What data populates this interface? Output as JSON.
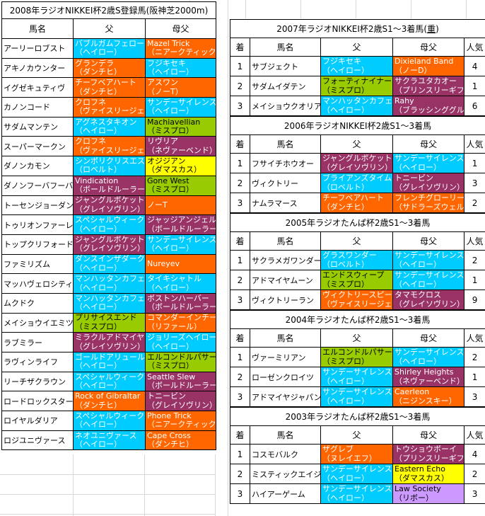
{
  "palette": {
    "cyan": {
      "bg": "#00CCFF",
      "fg": "#FFFFFF"
    },
    "orange": {
      "bg": "#FF6600",
      "fg": "#FFFFFF"
    },
    "plum": {
      "bg": "#993366",
      "fg": "#FFFFFF"
    },
    "lime": {
      "bg": "#99CC00",
      "fg": "#000000"
    },
    "yellow": {
      "bg": "#FFFF00",
      "fg": "#000000"
    },
    "lavender": {
      "bg": "#CC99FF",
      "fg": "#000000"
    }
  },
  "left_table": {
    "title": "2008年ラジオNIKKEI杯2歳S登録馬(阪神芝2000m)",
    "columns": [
      "馬名",
      "父",
      "母父"
    ],
    "rows": [
      {
        "name": "アーリーロブスト",
        "sire": {
          "t": "バブルガムフェロー",
          "s": "（ヘイロー）",
          "c": "cyan"
        },
        "dam": {
          "t": "Mazel Trick",
          "s": "（ニアークティック）",
          "c": "orange"
        }
      },
      {
        "name": "アキノカウンター",
        "sire": {
          "t": "グランデラ",
          "s": "（ダンチヒ）",
          "c": "orange"
        },
        "dam": {
          "t": "フジキセキ",
          "s": "（ヘイロー）",
          "c": "cyan"
        }
      },
      {
        "name": "イグゼキュティヴ",
        "sire": {
          "t": "チーフベアハート",
          "s": "（ダンチヒ）",
          "c": "orange"
        },
        "dam": {
          "t": "アスワン",
          "s": "（ノーT）",
          "c": "orange"
        }
      },
      {
        "name": "カノンコード",
        "sire": {
          "t": "クロフネ",
          "s": "（ヴァイスリージェ）",
          "c": "orange"
        },
        "dam": {
          "t": "サンデーサイレンス",
          "s": "（ヘイロー）",
          "c": "cyan"
        }
      },
      {
        "name": "サダムマンテン",
        "sire": {
          "t": "アグネスタキオン",
          "s": "（ヘイロー）",
          "c": "cyan"
        },
        "dam": {
          "t": "Machiavellian",
          "s": "（ミスプロ）",
          "c": "lime"
        }
      },
      {
        "name": "スーパーマークン",
        "sire": {
          "t": "クロフネ",
          "s": "（ヴァイスリージェ）",
          "c": "orange"
        },
        "dam": {
          "t": "リヴリア",
          "s": "（ネヴァーベンド）",
          "c": "plum"
        }
      },
      {
        "name": "ダノンカモン",
        "sire": {
          "t": "シンボリクリスエス",
          "s": "（ロベルト）",
          "c": "cyan"
        },
        "dam": {
          "t": "オジジアン",
          "s": "（ダマスカス）",
          "c": "yellow"
        }
      },
      {
        "name": "ダノンフーバフーバ",
        "sire": {
          "t": "Vindication",
          "s": "（ボールドルーラー）",
          "c": "plum"
        },
        "dam": {
          "t": "Gone West",
          "s": "（ミスプロ）",
          "c": "lime"
        }
      },
      {
        "name": "トーセンジョーダン",
        "sire": {
          "t": "ジャングルポケット",
          "s": "（グレイソヴリン）",
          "c": "plum"
        },
        "dam": {
          "t": "ノーT",
          "s": "",
          "c": "orange"
        }
      },
      {
        "name": "トゥリオンファーレ",
        "sire": {
          "t": "スペシャルウィーク",
          "s": "（ヘイロー）",
          "c": "cyan"
        },
        "dam": {
          "t": "ジャッジアンジェル",
          "s": "（ボールドルーラー）",
          "c": "plum"
        }
      },
      {
        "name": "トップクリフォード",
        "sire": {
          "t": "ジャングルポケット",
          "s": "（グレイソヴリン）",
          "c": "plum"
        },
        "dam": {
          "t": "サンデーサイレンス",
          "s": "（ヘイロー）",
          "c": "cyan"
        }
      },
      {
        "name": "ファミリズム",
        "sire": {
          "t": "ダンスインザダーク",
          "s": "（ヘイロー）",
          "c": "cyan"
        },
        "dam": {
          "t": "Nureyev",
          "s": "",
          "c": "orange"
        }
      },
      {
        "name": "マッハヴェロシティ",
        "sire": {
          "t": "マンハッタンカフェ",
          "s": "（ヘイロー）",
          "c": "cyan"
        },
        "dam": {
          "t": "タイキシャトル",
          "s": "（ヘイロー）",
          "c": "cyan"
        }
      },
      {
        "name": "ムクドク",
        "sire": {
          "t": "マンハッタンカフェ",
          "s": "（ヘイロー）",
          "c": "cyan"
        },
        "dam": {
          "t": "ボストンハーバー",
          "s": "（ボールドルーラー）",
          "c": "plum"
        }
      },
      {
        "name": "メイショウイエミツ",
        "sire": {
          "t": "プリサイスエンド",
          "s": "（ミスプロ）",
          "c": "lime"
        },
        "dam": {
          "t": "コマンダーインチー",
          "s": "（リファール）",
          "c": "orange"
        }
      },
      {
        "name": "ラブミラー",
        "sire": {
          "t": "ミラクルアドマイヤ",
          "s": "（グレイソヴリン）",
          "c": "plum"
        },
        "dam": {
          "t": "ジョリーズヘイロー",
          "s": "（ヘイロー）",
          "c": "cyan"
        }
      },
      {
        "name": "ラヴィンライフ",
        "sire": {
          "t": "ゴールドアリュール",
          "s": "（ヘイロー）",
          "c": "cyan"
        },
        "dam": {
          "t": "エルコンドルパサー",
          "s": "（ミスプロ）",
          "c": "lime"
        }
      },
      {
        "name": "リーチザクラウン",
        "sire": {
          "t": "スペシャルウィーク",
          "s": "（ヘイロー）",
          "c": "cyan"
        },
        "dam": {
          "t": "Seattle Slew",
          "s": "（ボールドルーラー）",
          "c": "plum"
        }
      },
      {
        "name": "ロードロックスター",
        "sire": {
          "t": "Rock of Gibraltar",
          "s": "（ダンチヒ）",
          "c": "orange"
        },
        "dam": {
          "t": "トニービン",
          "s": "（グレイソヴリン）",
          "c": "plum"
        }
      },
      {
        "name": "ロイヤルダリア",
        "sire": {
          "t": "スペシャルウィーク",
          "s": "（ヘイロー）",
          "c": "cyan"
        },
        "dam": {
          "t": "Phone Trick",
          "s": "（ニアークティック）",
          "c": "orange"
        }
      },
      {
        "name": "ロジユニヴァース",
        "sire": {
          "t": "ネオユニヴァース",
          "s": "（ヘイロー）",
          "c": "cyan"
        },
        "dam": {
          "t": "Cape Cross",
          "s": "（ダンチヒ）",
          "c": "orange"
        }
      }
    ]
  },
  "right_tables": [
    {
      "title": {
        "pre": "2007年ラジオNIKKEI杯2歳S1～3着馬(",
        "u": "重",
        "post": ")"
      },
      "columns": [
        "着",
        "馬名",
        "父",
        "母父",
        "人気"
      ],
      "rows": [
        {
          "pos": "1",
          "name": "サブジェクト",
          "sire": {
            "t": "フジキセキ",
            "s": "（ヘイロー）",
            "c": "cyan"
          },
          "dam": {
            "t": "Dixieland Band",
            "s": "（ノーD）",
            "c": "orange"
          },
          "pop": "4"
        },
        {
          "pos": "2",
          "name": "サダムイダテン",
          "sire": {
            "t": "フォーティナイナー",
            "s": "（ミスプロ）",
            "c": "lime"
          },
          "dam": {
            "t": "サクラユタカオー",
            "s": "（プリンスリーギフ）",
            "c": "plum"
          },
          "pop": "1"
        },
        {
          "pos": "3",
          "name": "メイショウクオリア",
          "sire": {
            "t": "マンハッタンカフェ",
            "s": "（ヘイロー）",
            "c": "cyan"
          },
          "dam": {
            "t": "Rahy",
            "s": "（ブラッシンググル）",
            "c": "plum"
          },
          "pop": "6"
        }
      ]
    },
    {
      "title": {
        "pre": "2006年ラジオNIKKEI杯2歳S1～3着馬",
        "u": "",
        "post": ""
      },
      "columns": [
        "着",
        "馬名",
        "父",
        "母父",
        "人気"
      ],
      "rows": [
        {
          "pos": "1",
          "name": "フサイチホウオー",
          "sire": {
            "t": "ジャングルポケット",
            "s": "（グレイソヴリン）",
            "c": "plum"
          },
          "dam": {
            "t": "サンデーサイレンス",
            "s": "（ヘイロー）",
            "c": "cyan"
          },
          "pop": "1"
        },
        {
          "pos": "2",
          "name": "ヴィクトリー",
          "sire": {
            "t": "ブライアンズタイム",
            "s": "（ロベルト）",
            "c": "cyan"
          },
          "dam": {
            "t": "トニービン",
            "s": "（グレイソヴリン）",
            "c": "plum"
          },
          "pop": "3"
        },
        {
          "pos": "3",
          "name": "ナムラマース",
          "sire": {
            "t": "チーフベアハート",
            "s": "（ダンチヒ）",
            "c": "orange"
          },
          "dam": {
            "t": "フレンチグローリー",
            "s": "（サドラーズウェル）",
            "c": "orange"
          },
          "pop": "2"
        }
      ]
    },
    {
      "title": {
        "pre": "2005年ラジオたんぱ杯2歳S1～3着馬",
        "u": "",
        "post": ""
      },
      "columns": [
        "着",
        "馬名",
        "父",
        "母父",
        "人気"
      ],
      "rows": [
        {
          "pos": "1",
          "name": "サクラメガワンダー",
          "sire": {
            "t": "グラスワンダー",
            "s": "（ロベルト）",
            "c": "cyan"
          },
          "dam": {
            "t": "サンデーサイレンス",
            "s": "（ヘイロー）",
            "c": "cyan"
          },
          "pop": "2"
        },
        {
          "pos": "2",
          "name": "アドマイヤムーン",
          "sire": {
            "t": "エンドスウィープ",
            "s": "（ミスプロ）",
            "c": "lime"
          },
          "dam": {
            "t": "サンデーサイレンス",
            "s": "（ヘイロー）",
            "c": "cyan"
          },
          "pop": "1"
        },
        {
          "pos": "3",
          "name": "ヴィクトリーラン",
          "sire": {
            "t": "ヴィクトリースピー",
            "s": "（ヴァイスリージェ）",
            "c": "orange"
          },
          "dam": {
            "t": "タマモクロス",
            "s": "（グレイソヴリン）",
            "c": "plum"
          },
          "pop": "9"
        }
      ]
    },
    {
      "title": {
        "pre": "2004年ラジオたんぱ杯2歳S1～3着馬",
        "u": "",
        "post": ""
      },
      "columns": [
        "着",
        "馬名",
        "父",
        "母父",
        "人気"
      ],
      "rows": [
        {
          "pos": "1",
          "name": "ヴァーミリアン",
          "sire": {
            "t": "エルコンドルパサー",
            "s": "（ミスプロ）",
            "c": "lime"
          },
          "dam": {
            "t": "サンデーサイレンス",
            "s": "（ヘイロー）",
            "c": "cyan"
          },
          "pop": "2"
        },
        {
          "pos": "2",
          "name": "ローゼンクロイツ",
          "sire": {
            "t": "サンデーサイレンス",
            "s": "（ヘイロー）",
            "c": "cyan"
          },
          "dam": {
            "t": "Shirley Heights",
            "s": "（ネヴァーベンド）",
            "c": "plum"
          },
          "pop": "1"
        },
        {
          "pos": "3",
          "name": "アドマイヤジャパン",
          "sire": {
            "t": "サンデーサイレンス",
            "s": "（ヘイロー）",
            "c": "cyan"
          },
          "dam": {
            "t": "Caerleon",
            "s": "（ニジンスキー）",
            "c": "orange"
          },
          "pop": "3"
        }
      ]
    },
    {
      "title": {
        "pre": "2003年ラジオたんぱ杯2歳S1～3着馬",
        "u": "",
        "post": ""
      },
      "columns": [
        "着",
        "馬名",
        "父",
        "母父",
        "人気"
      ],
      "rows": [
        {
          "pos": "1",
          "name": "コスモバルク",
          "sire": {
            "t": "ザグレブ",
            "s": "（ヌレイエフ）",
            "c": "orange"
          },
          "dam": {
            "t": "トウショウボーイ",
            "s": "（プリンスリーギフ）",
            "c": "plum"
          },
          "pop": "4"
        },
        {
          "pos": "2",
          "name": "ミスティックエイジ",
          "sire": {
            "t": "サンデーサイレンス",
            "s": "（ヘイロー）",
            "c": "cyan"
          },
          "dam": {
            "t": "Eastern Echo",
            "s": "（ダマスカス）",
            "c": "yellow"
          },
          "pop": "2"
        },
        {
          "pos": "3",
          "name": "ハイアーゲーム",
          "sire": {
            "t": "サンデーサイレンス",
            "s": "（ヘイロー）",
            "c": "cyan"
          },
          "dam": {
            "t": "Law Society",
            "s": "（リボー）",
            "c": "lavender"
          },
          "pop": "3"
        }
      ]
    }
  ]
}
